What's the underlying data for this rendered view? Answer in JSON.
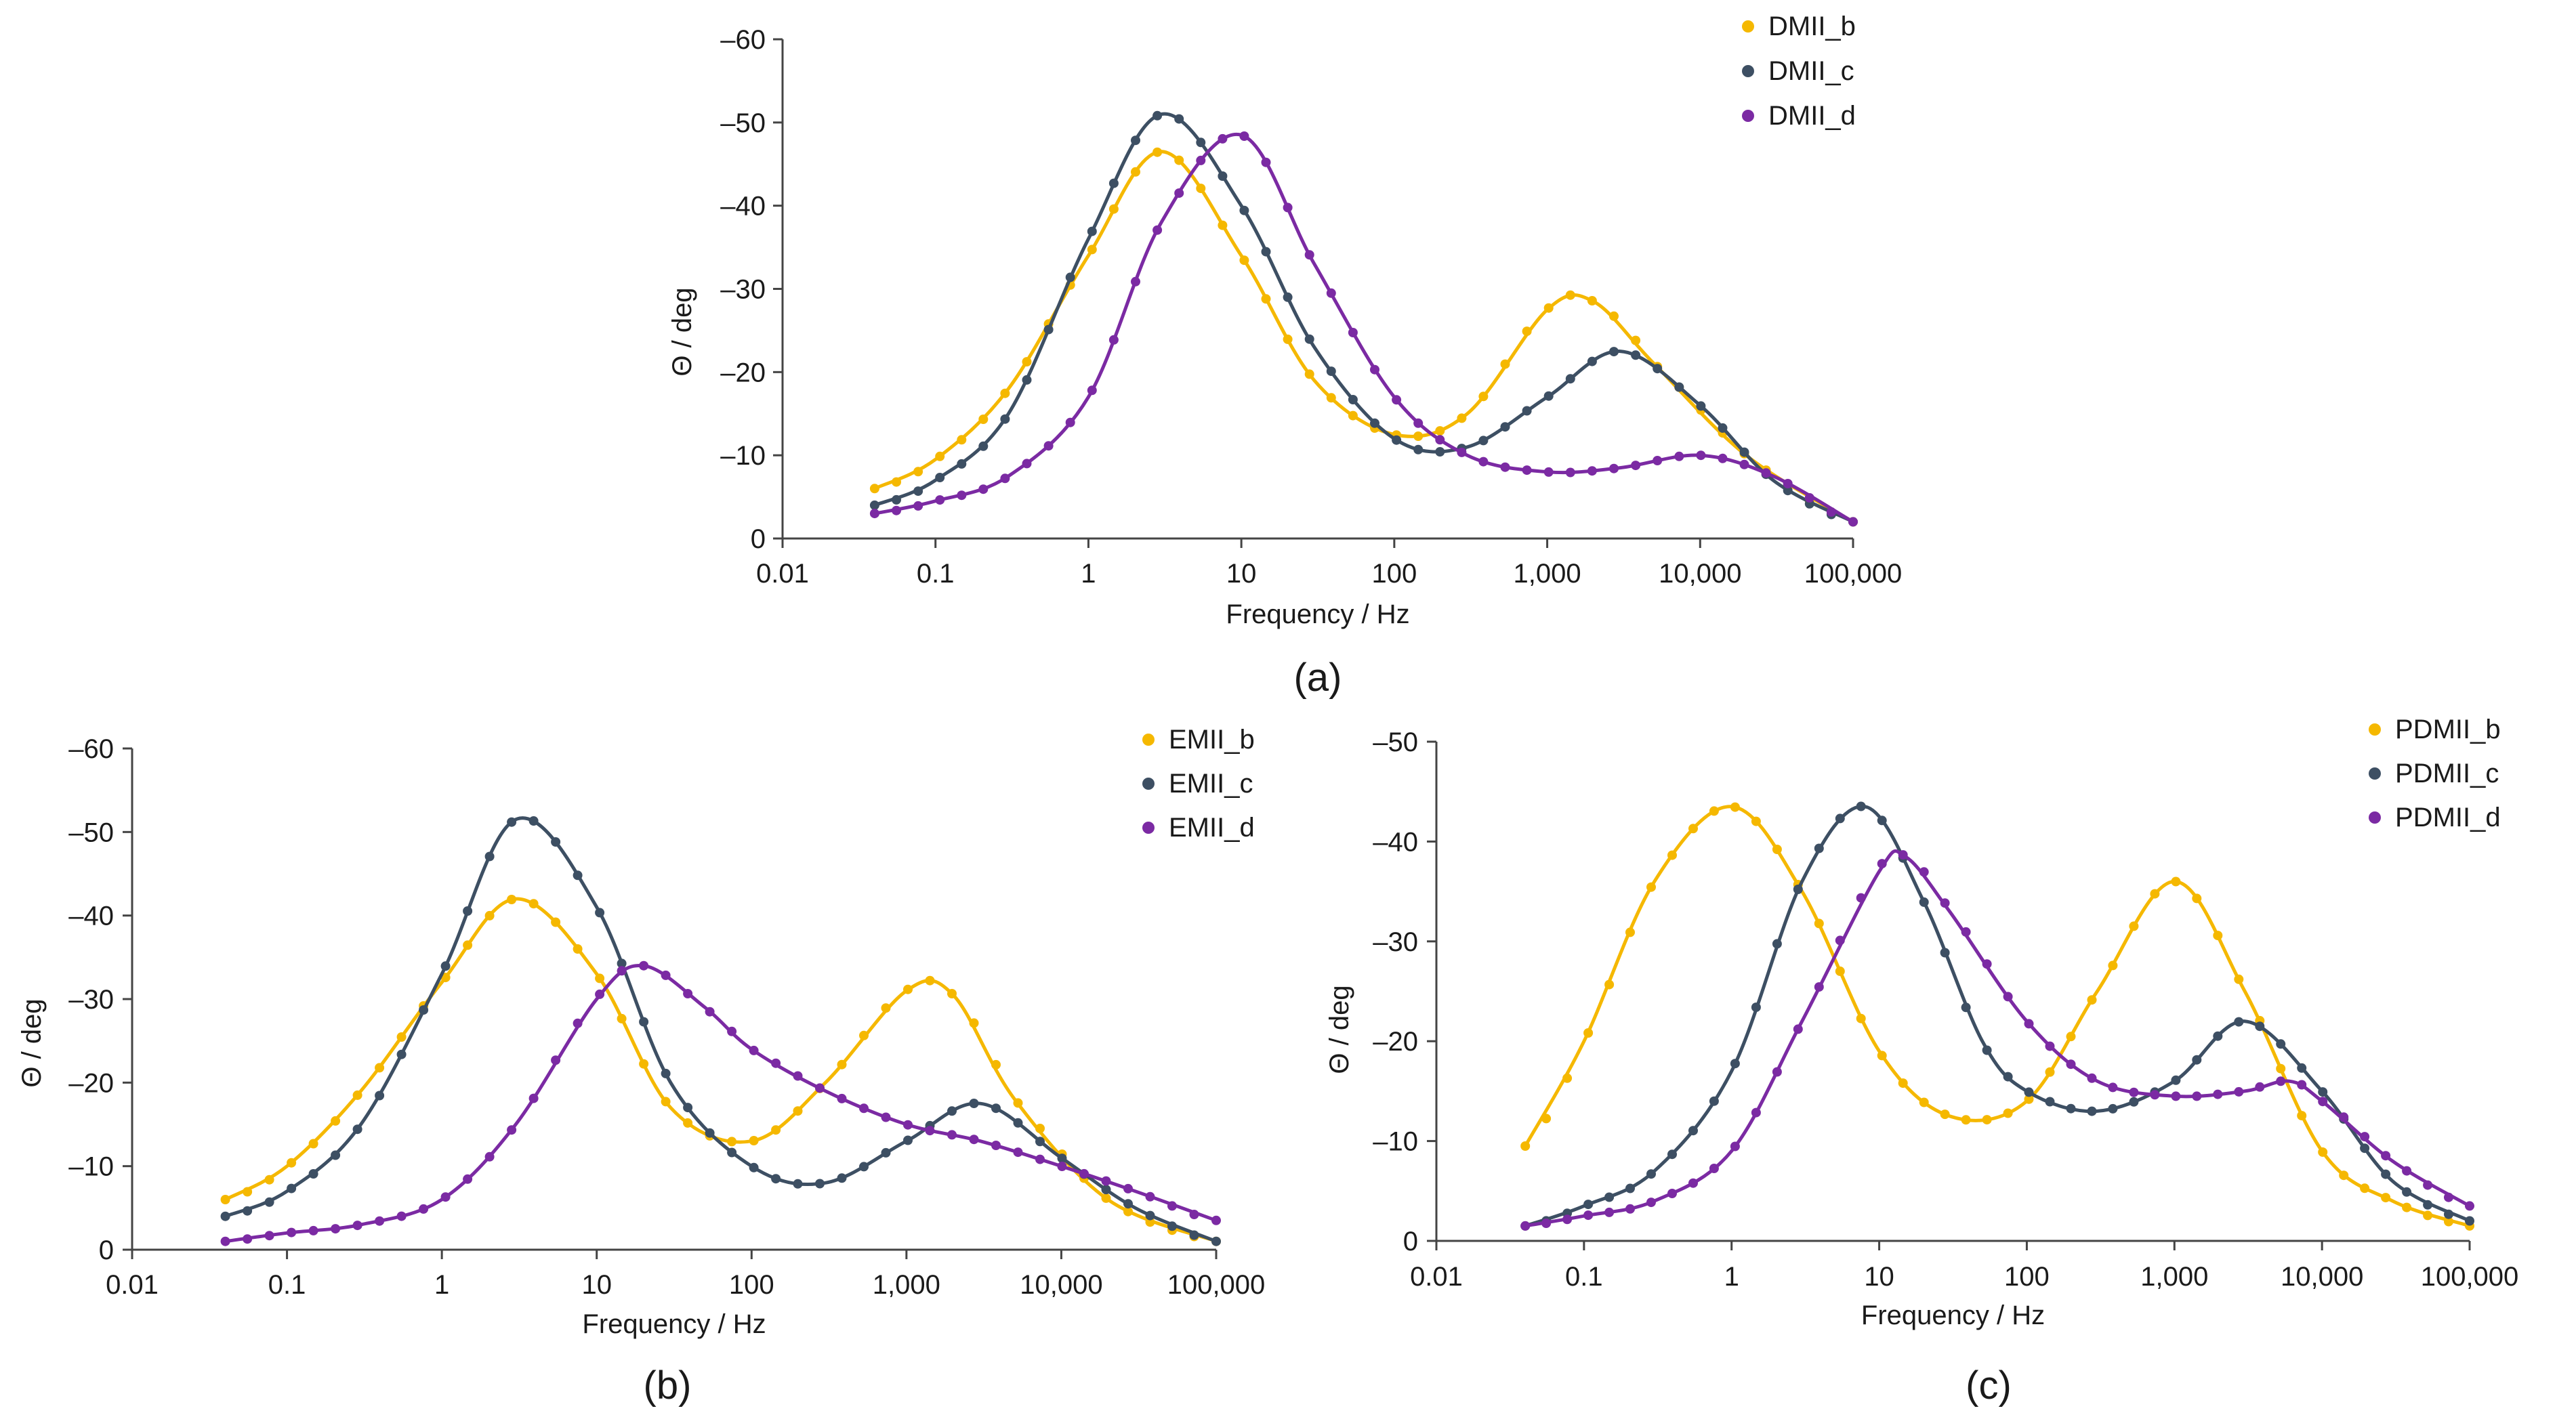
{
  "colors": {
    "b": "#F5B800",
    "c": "#3D4F63",
    "d": "#7B2AA3"
  },
  "chart_data": [
    {
      "type": "line",
      "panel_label": "(a)",
      "xlabel": "Frequency / Hz",
      "ylabel": "Θ / deg",
      "xscale": "log",
      "xlim": [
        0.01,
        100000
      ],
      "ylim": [
        0,
        -60
      ],
      "x_tick_labels": [
        "0.01",
        "0.1",
        "1",
        "10",
        "100",
        "1,000",
        "10,000",
        "100,000"
      ],
      "y_tick_labels": [
        "0",
        "–10",
        "–20",
        "–30",
        "–40",
        "–50",
        "–60"
      ],
      "legend_position": "top-right",
      "series": [
        {
          "name": "DMII_b",
          "color": "#F5B800",
          "points": [
            [
              0.04,
              -6
            ],
            [
              0.1,
              -9.5
            ],
            [
              0.3,
              -18
            ],
            [
              1,
              -34
            ],
            [
              3,
              -46.5
            ],
            [
              10,
              -34
            ],
            [
              30,
              -19
            ],
            [
              100,
              -12.5
            ],
            [
              300,
              -15
            ],
            [
              1000,
              -27.5
            ],
            [
              2000,
              -28.5
            ],
            [
              5000,
              -21
            ],
            [
              20000,
              -10
            ],
            [
              100000,
              -2
            ]
          ]
        },
        {
          "name": "DMII_c",
          "color": "#3D4F63",
          "points": [
            [
              0.04,
              -4
            ],
            [
              0.1,
              -7
            ],
            [
              0.3,
              -15
            ],
            [
              1,
              -36
            ],
            [
              3,
              -51
            ],
            [
              10,
              -40
            ],
            [
              30,
              -23
            ],
            [
              100,
              -12
            ],
            [
              300,
              -11
            ],
            [
              1000,
              -17
            ],
            [
              3000,
              -22.5
            ],
            [
              10000,
              -16
            ],
            [
              30000,
              -7
            ],
            [
              100000,
              -2
            ]
          ]
        },
        {
          "name": "DMII_d",
          "color": "#7B2AA3",
          "points": [
            [
              0.04,
              -3
            ],
            [
              0.1,
              -4.5
            ],
            [
              0.3,
              -7.5
            ],
            [
              1,
              -17
            ],
            [
              3,
              -38
            ],
            [
              10,
              -48.5
            ],
            [
              30,
              -33
            ],
            [
              100,
              -17
            ],
            [
              300,
              -10
            ],
            [
              1000,
              -8
            ],
            [
              3000,
              -8.5
            ],
            [
              10000,
              -10
            ],
            [
              30000,
              -7.5
            ],
            [
              100000,
              -2
            ]
          ]
        }
      ]
    },
    {
      "type": "line",
      "panel_label": "(b)",
      "xlabel": "Frequency / Hz",
      "ylabel": "Θ / deg",
      "xscale": "log",
      "xlim": [
        0.01,
        100000
      ],
      "ylim": [
        0,
        -60
      ],
      "x_tick_labels": [
        "0.01",
        "0.1",
        "1",
        "10",
        "100",
        "1,000",
        "10,000",
        "100,000"
      ],
      "y_tick_labels": [
        "0",
        "–10",
        "–20",
        "–30",
        "–40",
        "–50",
        "–60"
      ],
      "legend_position": "top-right",
      "series": [
        {
          "name": "EMII_b",
          "color": "#F5B800",
          "points": [
            [
              0.04,
              -6
            ],
            [
              0.1,
              -10
            ],
            [
              0.3,
              -19
            ],
            [
              1,
              -32
            ],
            [
              3,
              -42
            ],
            [
              10,
              -33
            ],
            [
              30,
              -17
            ],
            [
              100,
              -13
            ],
            [
              300,
              -20
            ],
            [
              1000,
              -31
            ],
            [
              2000,
              -30.5
            ],
            [
              5000,
              -18
            ],
            [
              20000,
              -6
            ],
            [
              100000,
              -1
            ]
          ]
        },
        {
          "name": "EMII_c",
          "color": "#3D4F63",
          "points": [
            [
              0.04,
              -4
            ],
            [
              0.1,
              -7
            ],
            [
              0.3,
              -15
            ],
            [
              1,
              -33
            ],
            [
              3,
              -51.5
            ],
            [
              10,
              -41
            ],
            [
              30,
              -20
            ],
            [
              100,
              -10
            ],
            [
              300,
              -8
            ],
            [
              1000,
              -13
            ],
            [
              3000,
              -17.5
            ],
            [
              10000,
              -11
            ],
            [
              30000,
              -5
            ],
            [
              100000,
              -1
            ]
          ]
        },
        {
          "name": "EMII_d",
          "color": "#7B2AA3",
          "points": [
            [
              0.04,
              -1
            ],
            [
              0.1,
              -2
            ],
            [
              0.3,
              -3
            ],
            [
              1,
              -6
            ],
            [
              3,
              -15
            ],
            [
              10,
              -30
            ],
            [
              20,
              -34
            ],
            [
              50,
              -29
            ],
            [
              100,
              -24
            ],
            [
              300,
              -19
            ],
            [
              1000,
              -15
            ],
            [
              3000,
              -13
            ],
            [
              10000,
              -10
            ],
            [
              30000,
              -7
            ],
            [
              100000,
              -3.5
            ]
          ]
        }
      ]
    },
    {
      "type": "line",
      "panel_label": "(c)",
      "xlabel": "Frequency / Hz",
      "ylabel": "Θ / deg",
      "xscale": "log",
      "xlim": [
        0.01,
        100000
      ],
      "ylim": [
        0,
        -50
      ],
      "x_tick_labels": [
        "0.01",
        "0.1",
        "1",
        "10",
        "100",
        "1,000",
        "10,000",
        "100,000"
      ],
      "y_tick_labels": [
        "0",
        "–10",
        "–20",
        "–30",
        "–40",
        "–50"
      ],
      "legend_position": "top-right",
      "series": [
        {
          "name": "PDMII_b",
          "color": "#F5B800",
          "points": [
            [
              0.04,
              -9.5
            ],
            [
              0.1,
              -20
            ],
            [
              0.3,
              -36
            ],
            [
              1,
              -43.5
            ],
            [
              3,
              -35
            ],
            [
              10,
              -19
            ],
            [
              30,
              -12.5
            ],
            [
              100,
              -14
            ],
            [
              300,
              -25
            ],
            [
              1000,
              -36
            ],
            [
              3000,
              -25
            ],
            [
              10000,
              -9
            ],
            [
              30000,
              -4
            ],
            [
              100000,
              -1.5
            ]
          ]
        },
        {
          "name": "PDMII_c",
          "color": "#3D4F63",
          "points": [
            [
              0.04,
              -1.5
            ],
            [
              0.1,
              -3.5
            ],
            [
              0.3,
              -7
            ],
            [
              1,
              -17
            ],
            [
              3,
              -36
            ],
            [
              8,
              -43.5
            ],
            [
              20,
              -34
            ],
            [
              50,
              -20
            ],
            [
              100,
              -15
            ],
            [
              300,
              -13
            ],
            [
              1000,
              -16
            ],
            [
              3000,
              -22
            ],
            [
              10000,
              -15
            ],
            [
              30000,
              -6
            ],
            [
              100000,
              -2
            ]
          ]
        },
        {
          "name": "PDMII_d",
          "color": "#7B2AA3",
          "points": [
            [
              0.04,
              -1.5
            ],
            [
              0.1,
              -2.5
            ],
            [
              0.3,
              -4
            ],
            [
              1,
              -9
            ],
            [
              3,
              -22
            ],
            [
              10,
              -37
            ],
            [
              15,
              -38.5
            ],
            [
              30,
              -33
            ],
            [
              100,
              -22
            ],
            [
              300,
              -16
            ],
            [
              1000,
              -14.5
            ],
            [
              3000,
              -15
            ],
            [
              6000,
              -16
            ],
            [
              10000,
              -14
            ],
            [
              30000,
              -8
            ],
            [
              100000,
              -3.5
            ]
          ]
        }
      ]
    }
  ]
}
